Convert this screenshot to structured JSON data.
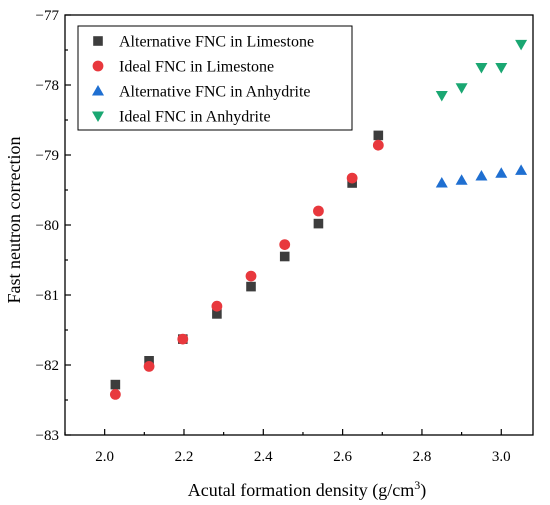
{
  "chart_data": {
    "type": "scatter",
    "title": "",
    "xlabel": "Acutal formation density (g/cm",
    "xlabel_superscript": "3",
    "xlabel_suffix": ")",
    "ylabel": "Fast neutron correction",
    "xlim": [
      1.9,
      3.08
    ],
    "ylim": [
      -83,
      -77
    ],
    "x_ticks": [
      2.0,
      2.2,
      2.4,
      2.6,
      2.8,
      3.0
    ],
    "x_tick_labels": [
      "2.0",
      "2.2",
      "2.4",
      "2.6",
      "2.8",
      "3.0"
    ],
    "y_ticks": [
      -83,
      -82,
      -81,
      -80,
      -79,
      -78,
      -77
    ],
    "y_tick_labels": [
      "−83",
      "−82",
      "−81",
      "−80",
      "−79",
      "−78",
      "−77"
    ],
    "grid": false,
    "legend_position": "top-left",
    "series": [
      {
        "name": "Alternative FNC in Limestone",
        "marker": "square",
        "color": "#3d3d3d",
        "x": [
          2.027,
          2.112,
          2.197,
          2.283,
          2.369,
          2.454,
          2.539,
          2.624,
          2.69
        ],
        "y": [
          -82.28,
          -81.94,
          -81.63,
          -81.27,
          -80.88,
          -80.45,
          -79.98,
          -79.4,
          -78.72
        ]
      },
      {
        "name": "Ideal FNC in Limestone",
        "marker": "circle",
        "color": "#e8383d",
        "x": [
          2.027,
          2.112,
          2.197,
          2.283,
          2.369,
          2.454,
          2.539,
          2.624,
          2.69
        ],
        "y": [
          -82.42,
          -82.02,
          -81.63,
          -81.16,
          -80.73,
          -80.28,
          -79.8,
          -79.33,
          -78.86
        ]
      },
      {
        "name": "Alternative FNC in Anhydrite",
        "marker": "triangle-up",
        "color": "#1f6fd1",
        "x": [
          2.85,
          2.9,
          2.95,
          3.0,
          3.05
        ],
        "y": [
          -79.4,
          -79.36,
          -79.3,
          -79.26,
          -79.22
        ]
      },
      {
        "name": "Ideal FNC in Anhydrite",
        "marker": "triangle-down",
        "color": "#1aa772",
        "x": [
          2.85,
          2.9,
          2.95,
          3.0,
          3.05
        ],
        "y": [
          -78.15,
          -78.04,
          -77.75,
          -77.75,
          -77.42
        ]
      }
    ]
  }
}
